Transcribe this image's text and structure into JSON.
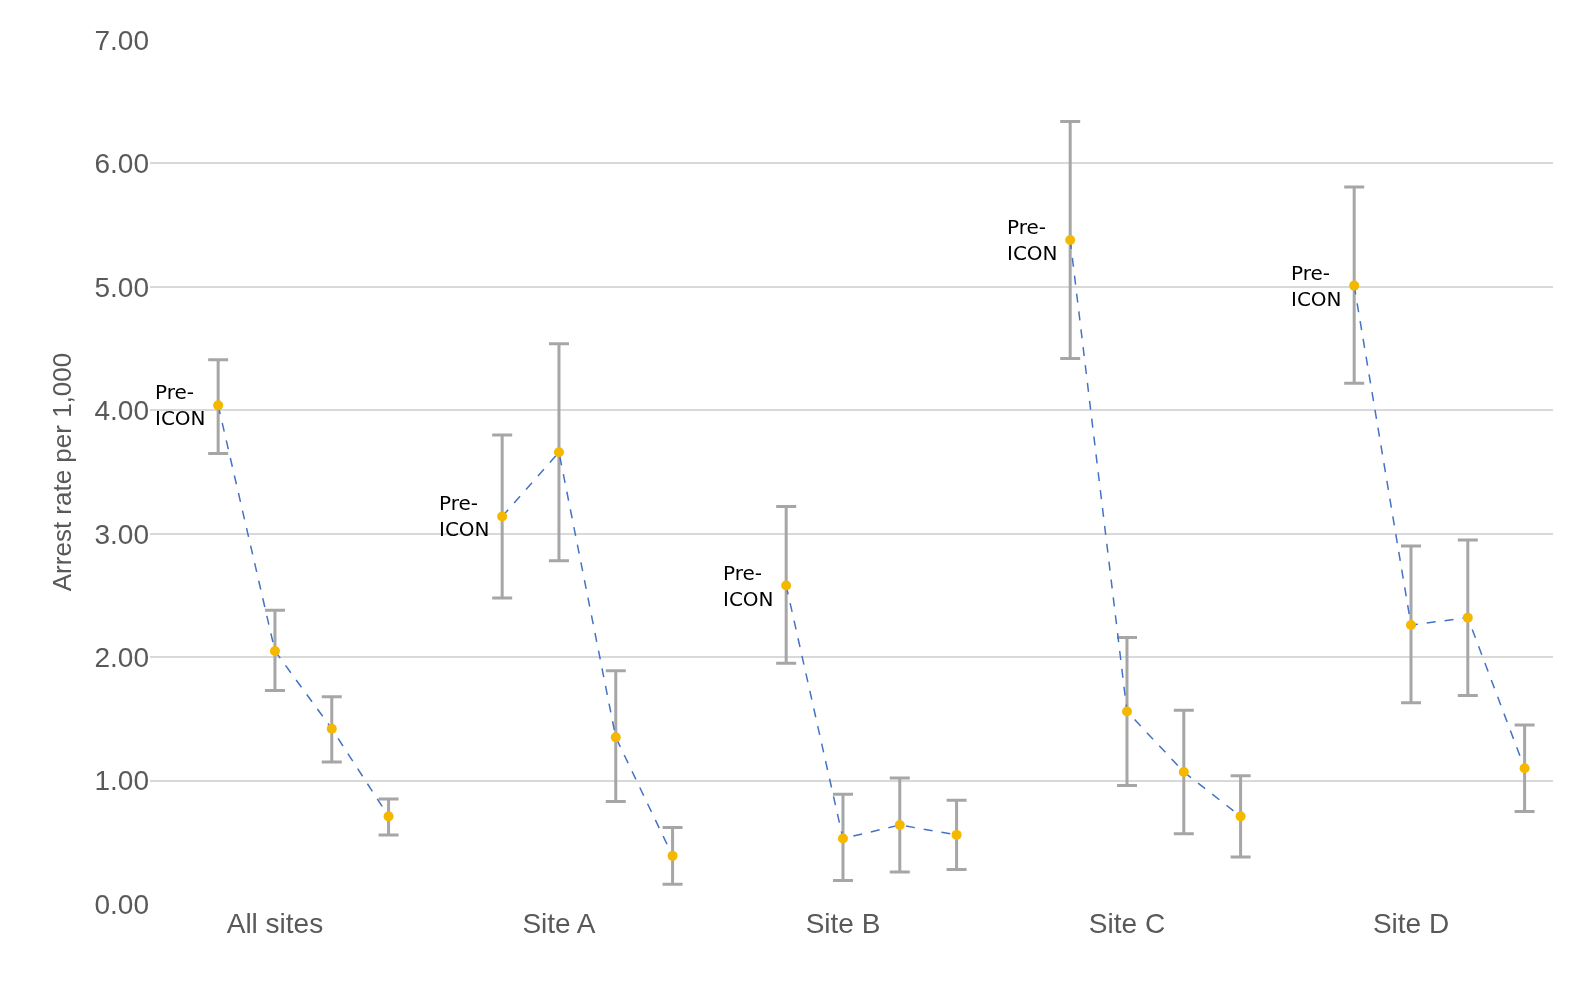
{
  "chart_data": {
    "type": "line",
    "ylabel": "Arrest rate per 1,000",
    "categories": [
      null,
      "All sites",
      null,
      null,
      null,
      null,
      "Site A",
      null,
      null,
      null,
      null,
      "Site B",
      null,
      null,
      null,
      null,
      "Site C",
      null,
      null,
      null,
      null,
      "Site D",
      null,
      null
    ],
    "series": [
      {
        "color": "#f5b800",
        "values": [
          4.04,
          2.05,
          1.42,
          0.71,
          null,
          3.14,
          3.66,
          1.35,
          0.39,
          null,
          2.58,
          0.53,
          0.64,
          0.56,
          null,
          5.38,
          1.56,
          1.07,
          0.71,
          null,
          5.01,
          2.26,
          2.32,
          1.1
        ],
        "errors": [
          [
            3.65,
            4.41
          ],
          [
            1.73,
            2.38
          ],
          [
            1.15,
            1.68
          ],
          [
            0.56,
            0.85
          ],
          null,
          [
            2.48,
            3.8
          ],
          [
            2.78,
            4.54
          ],
          [
            0.83,
            1.89
          ],
          [
            0.16,
            0.62
          ],
          null,
          [
            1.95,
            3.22
          ],
          [
            0.19,
            0.89
          ],
          [
            0.26,
            1.02
          ],
          [
            0.28,
            0.84
          ],
          null,
          [
            4.42,
            6.34
          ],
          [
            0.96,
            2.16
          ],
          [
            0.57,
            1.57
          ],
          [
            0.38,
            1.04
          ],
          null,
          [
            4.22,
            5.81
          ],
          [
            1.63,
            2.9
          ],
          [
            1.69,
            2.95
          ],
          [
            0.75,
            1.45
          ]
        ],
        "value_labels": [
          "Pre-\nICON",
          null,
          null,
          null,
          null,
          "Pre-\nICON",
          null,
          null,
          null,
          null,
          "Pre-\nICON",
          null,
          null,
          null,
          null,
          "Pre-\nICON",
          null,
          null,
          null,
          null,
          "Pre-\nICON",
          null,
          null,
          null
        ]
      }
    ],
    "ylim": [
      0,
      7
    ],
    "yticks": [
      {
        "value": 0,
        "label": "0.00"
      },
      {
        "value": 1,
        "label": "1.00"
      },
      {
        "value": 2,
        "label": "2.00"
      },
      {
        "value": 3,
        "label": "3.00"
      },
      {
        "value": 4,
        "label": "4.00"
      },
      {
        "value": 5,
        "label": "5.00"
      },
      {
        "value": 6,
        "label": "6.00"
      },
      {
        "value": 7,
        "label": "7.00"
      }
    ],
    "grid": "y",
    "legend": false,
    "marker": "circle",
    "line_style": "dashed"
  }
}
